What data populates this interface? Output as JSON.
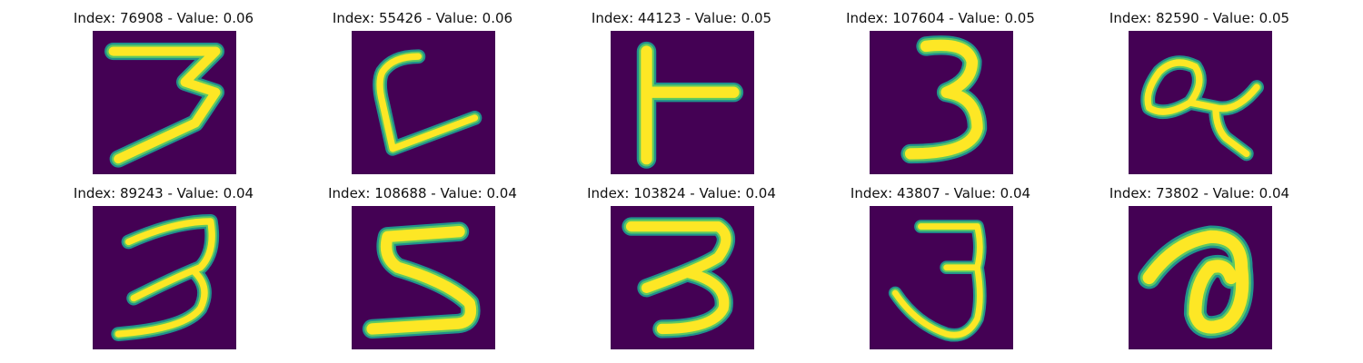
{
  "colors": {
    "background": "#440154",
    "stroke_outer": "#21918c",
    "stroke_mid": "#5ec962",
    "stroke_core": "#fde725"
  },
  "panels": [
    {
      "title": "Index: 76908 - Value: 0.06",
      "digit": "3"
    },
    {
      "title": "Index: 55426 - Value: 0.06",
      "digit": "L"
    },
    {
      "title": "Index: 44123 - Value: 0.05",
      "digit": "T"
    },
    {
      "title": "Index: 107604 - Value: 0.05",
      "digit": "3"
    },
    {
      "title": "Index: 82590 - Value: 0.05",
      "digit": "9"
    },
    {
      "title": "Index: 89243 - Value: 0.04",
      "digit": "3"
    },
    {
      "title": "Index: 108688 - Value: 0.04",
      "digit": "5"
    },
    {
      "title": "Index: 103824 - Value: 0.04",
      "digit": "3"
    },
    {
      "title": "Index: 43807 - Value: 0.04",
      "digit": "3"
    },
    {
      "title": "Index: 73802 - Value: 0.04",
      "digit": "a"
    }
  ]
}
